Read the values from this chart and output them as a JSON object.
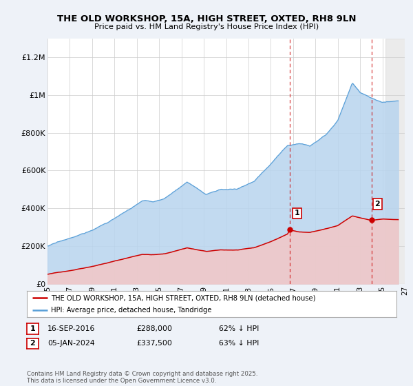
{
  "title": "THE OLD WORKSHOP, 15A, HIGH STREET, OXTED, RH8 9LN",
  "subtitle": "Price paid vs. HM Land Registry's House Price Index (HPI)",
  "background_color": "#eef2f8",
  "plot_bg_color": "#ffffff",
  "hpi_line_color": "#5aa0d8",
  "price_line_color": "#cc0000",
  "hpi_fill_color": "#b8d4ee",
  "price_fill_color": "#f0c8c8",
  "marker1_x": 2016.72,
  "marker1_y": 288000,
  "marker2_x": 2024.02,
  "marker2_y": 337500,
  "legend_entries": [
    "THE OLD WORKSHOP, 15A, HIGH STREET, OXTED, RH8 9LN (detached house)",
    "HPI: Average price, detached house, Tandridge"
  ],
  "fn1_date": "16-SEP-2016",
  "fn1_price": "£288,000",
  "fn1_pct": "62% ↓ HPI",
  "fn2_date": "05-JAN-2024",
  "fn2_price": "£337,500",
  "fn2_pct": "63% ↓ HPI",
  "copyright": "Contains HM Land Registry data © Crown copyright and database right 2025.\nThis data is licensed under the Open Government Licence v3.0.",
  "xmin": 1995,
  "xmax": 2027,
  "ymin": 0,
  "ymax": 1300000,
  "yticks": [
    0,
    200000,
    400000,
    600000,
    800000,
    1000000,
    1200000
  ],
  "ytick_labels": [
    "£0",
    "£200K",
    "£400K",
    "£600K",
    "£800K",
    "£1M",
    "£1.2M"
  ],
  "hpi_seed": 17,
  "price_seed": 42
}
